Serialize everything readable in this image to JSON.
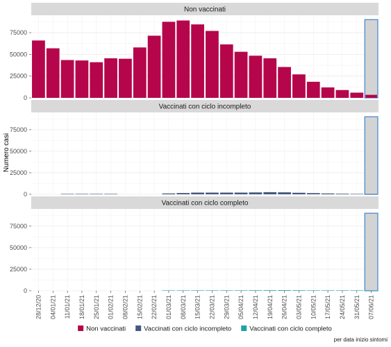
{
  "chart_data": {
    "type": "bar",
    "ylabel": "Numero casi",
    "caption": "per data inizio sintomi",
    "categories": [
      "28/12/20",
      "04/01/21",
      "11/01/21",
      "18/01/21",
      "25/01/21",
      "01/02/21",
      "08/02/21",
      "15/02/21",
      "22/02/21",
      "01/03/21",
      "08/03/21",
      "15/03/21",
      "22/03/21",
      "29/03/21",
      "05/04/21",
      "12/04/21",
      "19/04/21",
      "26/04/21",
      "03/05/21",
      "10/05/21",
      "17/05/21",
      "24/05/21",
      "31/05/21",
      "07/06/21"
    ],
    "ylim": [
      0,
      95000
    ],
    "yticks": [
      0,
      25000,
      50000,
      75000
    ],
    "ytick_labels": [
      "0",
      "25000",
      "50000",
      "75000"
    ],
    "highlight": {
      "category": "07/06/21",
      "value": 90000,
      "fill": "#d3d3d3",
      "stroke": "#3a86d4"
    },
    "panels": [
      {
        "title": "Non vaccinati",
        "color": "#b5064b",
        "values": [
          66000,
          57000,
          43500,
          43000,
          41000,
          45500,
          45000,
          58000,
          71500,
          87500,
          89000,
          84500,
          77000,
          61500,
          53000,
          48500,
          45500,
          35500,
          27000,
          18500,
          12000,
          9000,
          6000,
          3500
        ]
      },
      {
        "title": "Vaccinati con ciclo incompleto",
        "color": "#46587f",
        "values": [
          0,
          0,
          200,
          500,
          500,
          500,
          0,
          0,
          0,
          1000,
          1500,
          2000,
          2000,
          2000,
          2000,
          2200,
          2500,
          2300,
          1800,
          1400,
          1000,
          700,
          400,
          200
        ]
      },
      {
        "title": "Vaccinati con ciclo completo",
        "color": "#1fa2a8",
        "values": [
          0,
          0,
          0,
          0,
          0,
          0,
          0,
          0,
          0,
          300,
          300,
          300,
          300,
          350,
          500,
          600,
          650,
          700,
          600,
          500,
          400,
          300,
          200,
          100
        ]
      }
    ],
    "legend": {
      "position": "bottom",
      "items": [
        {
          "label": "Non vaccinati",
          "color": "#b5064b"
        },
        {
          "label": "Vaccinati con ciclo incompleto",
          "color": "#46587f"
        },
        {
          "label": "Vaccinati con ciclo completo",
          "color": "#1fa2a8"
        }
      ]
    },
    "grid": true
  }
}
